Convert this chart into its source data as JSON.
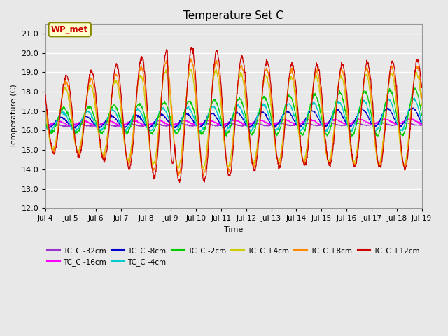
{
  "title": "Temperature Set C",
  "xlabel": "Time",
  "ylabel": "Temperature (C)",
  "ylim": [
    12.0,
    21.5
  ],
  "yticks": [
    12.0,
    13.0,
    14.0,
    15.0,
    16.0,
    17.0,
    18.0,
    19.0,
    20.0,
    21.0
  ],
  "series_colors": {
    "TC_C -32cm": "#9933CC",
    "TC_C -16cm": "#FF00FF",
    "TC_C -8cm": "#0000CC",
    "TC_C -4cm": "#00CCCC",
    "TC_C -2cm": "#00CC00",
    "TC_C +4cm": "#CCCC00",
    "TC_C +8cm": "#FF8800",
    "TC_C +12cm": "#CC0000"
  },
  "wp_met_label": "WP_met",
  "wp_met_color": "#CC0000",
  "wp_met_bg": "#FFFFCC",
  "wp_met_border": "#888800",
  "plot_bg": "#E8E8E8",
  "grid_color": "#FFFFFF",
  "x_start": 4.0,
  "x_end": 19.0,
  "xtick_positions": [
    4,
    5,
    6,
    7,
    8,
    9,
    10,
    11,
    12,
    13,
    14,
    15,
    16,
    17,
    18,
    19
  ],
  "xtick_labels": [
    "Jul 4",
    "Jul 5",
    "Jul 6",
    "Jul 7",
    "Jul 8",
    "Jul 9",
    "Jul 10",
    "Jul 11",
    "Jul 12",
    "Jul 13",
    "Jul 14",
    "Jul 15",
    "Jul 16",
    "Jul 17",
    "Jul 18",
    "Jul 19"
  ]
}
